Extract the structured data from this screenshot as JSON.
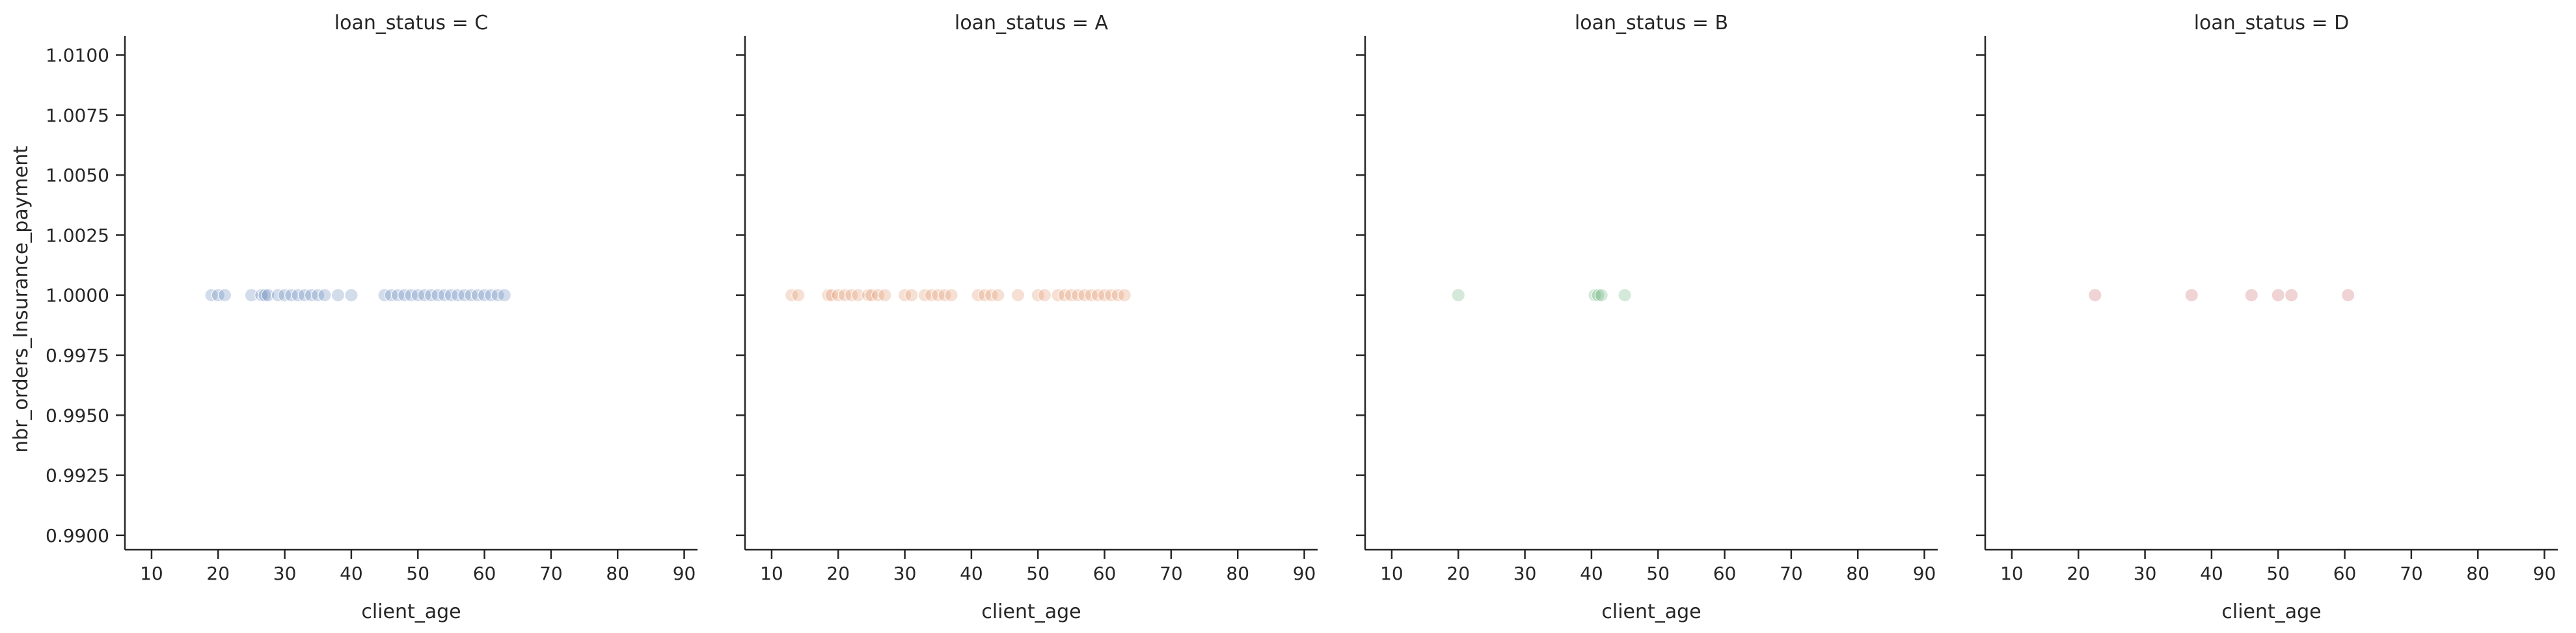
{
  "chart_data": {
    "type": "scatter",
    "facet_variable": "loan_status",
    "xlabel": "client_age",
    "ylabel": "nbr_orders_Insurance_payment",
    "xlim": [
      6,
      92
    ],
    "ylim": [
      0.9894,
      1.0108
    ],
    "xticks": [
      10,
      20,
      30,
      40,
      50,
      60,
      70,
      80,
      90
    ],
    "xtick_labels": [
      "10",
      "20",
      "30",
      "40",
      "50",
      "60",
      "70",
      "80",
      "90"
    ],
    "yticks": [
      0.99,
      0.9925,
      0.995,
      0.9975,
      1.0,
      1.0025,
      1.005,
      1.0075,
      1.01
    ],
    "ytick_labels": [
      "0.9900",
      "0.9925",
      "0.9950",
      "0.9975",
      "1.0000",
      "1.0025",
      "1.0050",
      "1.0075",
      "1.0100"
    ],
    "grid": false,
    "panels": [
      {
        "title": "loan_status = C",
        "color": "#4c72b0",
        "points": [
          {
            "x": 19,
            "y": 1.0
          },
          {
            "x": 20,
            "y": 1.0
          },
          {
            "x": 21,
            "y": 1.0
          },
          {
            "x": 25,
            "y": 1.0
          },
          {
            "x": 26.5,
            "y": 1.0
          },
          {
            "x": 27,
            "y": 1.0
          },
          {
            "x": 27.5,
            "y": 1.0
          },
          {
            "x": 29,
            "y": 1.0
          },
          {
            "x": 30,
            "y": 1.0
          },
          {
            "x": 31,
            "y": 1.0
          },
          {
            "x": 32,
            "y": 1.0
          },
          {
            "x": 33,
            "y": 1.0
          },
          {
            "x": 34,
            "y": 1.0
          },
          {
            "x": 35,
            "y": 1.0
          },
          {
            "x": 36,
            "y": 1.0
          },
          {
            "x": 38,
            "y": 1.0
          },
          {
            "x": 40,
            "y": 1.0
          },
          {
            "x": 45,
            "y": 1.0
          },
          {
            "x": 46,
            "y": 1.0
          },
          {
            "x": 47,
            "y": 1.0
          },
          {
            "x": 48,
            "y": 1.0
          },
          {
            "x": 49,
            "y": 1.0
          },
          {
            "x": 50,
            "y": 1.0
          },
          {
            "x": 51,
            "y": 1.0
          },
          {
            "x": 52,
            "y": 1.0
          },
          {
            "x": 53,
            "y": 1.0
          },
          {
            "x": 54,
            "y": 1.0
          },
          {
            "x": 55,
            "y": 1.0
          },
          {
            "x": 56,
            "y": 1.0
          },
          {
            "x": 57,
            "y": 1.0
          },
          {
            "x": 58,
            "y": 1.0
          },
          {
            "x": 59,
            "y": 1.0
          },
          {
            "x": 60,
            "y": 1.0
          },
          {
            "x": 61,
            "y": 1.0
          },
          {
            "x": 62,
            "y": 1.0
          },
          {
            "x": 63,
            "y": 1.0
          }
        ]
      },
      {
        "title": "loan_status = A",
        "color": "#dd8452",
        "points": [
          {
            "x": 13,
            "y": 1.0
          },
          {
            "x": 14,
            "y": 1.0
          },
          {
            "x": 18.5,
            "y": 1.0
          },
          {
            "x": 19,
            "y": 1.0
          },
          {
            "x": 20,
            "y": 1.0
          },
          {
            "x": 21,
            "y": 1.0
          },
          {
            "x": 22,
            "y": 1.0
          },
          {
            "x": 23,
            "y": 1.0
          },
          {
            "x": 24.5,
            "y": 1.0
          },
          {
            "x": 25,
            "y": 1.0
          },
          {
            "x": 26,
            "y": 1.0
          },
          {
            "x": 27,
            "y": 1.0
          },
          {
            "x": 30,
            "y": 1.0
          },
          {
            "x": 31,
            "y": 1.0
          },
          {
            "x": 33,
            "y": 1.0
          },
          {
            "x": 34,
            "y": 1.0
          },
          {
            "x": 35,
            "y": 1.0
          },
          {
            "x": 36,
            "y": 1.0
          },
          {
            "x": 37,
            "y": 1.0
          },
          {
            "x": 41,
            "y": 1.0
          },
          {
            "x": 42,
            "y": 1.0
          },
          {
            "x": 43,
            "y": 1.0
          },
          {
            "x": 44,
            "y": 1.0
          },
          {
            "x": 47,
            "y": 1.0
          },
          {
            "x": 50,
            "y": 1.0
          },
          {
            "x": 51,
            "y": 1.0
          },
          {
            "x": 53,
            "y": 1.0
          },
          {
            "x": 54,
            "y": 1.0
          },
          {
            "x": 55,
            "y": 1.0
          },
          {
            "x": 56,
            "y": 1.0
          },
          {
            "x": 57,
            "y": 1.0
          },
          {
            "x": 58,
            "y": 1.0
          },
          {
            "x": 59,
            "y": 1.0
          },
          {
            "x": 60,
            "y": 1.0
          },
          {
            "x": 61,
            "y": 1.0
          },
          {
            "x": 62,
            "y": 1.0
          },
          {
            "x": 63,
            "y": 1.0
          }
        ]
      },
      {
        "title": "loan_status = B",
        "color": "#55a868",
        "points": [
          {
            "x": 20,
            "y": 1.0
          },
          {
            "x": 40.5,
            "y": 1.0
          },
          {
            "x": 41,
            "y": 1.0
          },
          {
            "x": 41.5,
            "y": 1.0
          },
          {
            "x": 45,
            "y": 1.0
          }
        ]
      },
      {
        "title": "loan_status = D",
        "color": "#c44e52",
        "points": [
          {
            "x": 22.5,
            "y": 1.0
          },
          {
            "x": 37,
            "y": 1.0
          },
          {
            "x": 46,
            "y": 1.0
          },
          {
            "x": 50,
            "y": 1.0
          },
          {
            "x": 52,
            "y": 1.0
          },
          {
            "x": 60.5,
            "y": 1.0
          }
        ]
      }
    ]
  }
}
